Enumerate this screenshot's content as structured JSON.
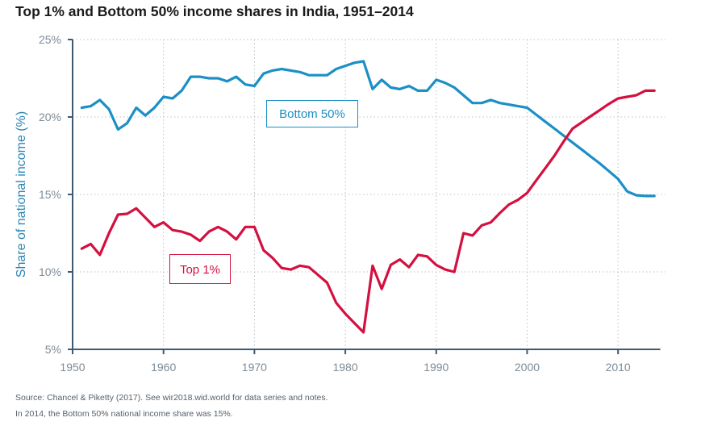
{
  "title": "Top 1% and Bottom 50% income shares in India, 1951–2014",
  "source_line_1": "Source: Chancel & Piketty (2017). See wir2018.wid.world for data series and notes.",
  "source_line_2": "In 2014, the Bottom 50% national income share was 15%.",
  "colors": {
    "bottom50": "#1b8fc6",
    "top1": "#d4103f",
    "axis": "#3e5a72",
    "grid": "#b9c2c9",
    "ylabel": "#2b86b3",
    "tick_label": "#7d8b97"
  },
  "chart_data": {
    "type": "line",
    "title": "Top 1% and Bottom 50% income shares in India, 1951–2014",
    "xlabel": "",
    "ylabel": "Share of national income (%)",
    "xlim": [
      1950,
      2015
    ],
    "ylim": [
      5,
      25
    ],
    "x_ticks": [
      1950,
      1960,
      1970,
      1980,
      1990,
      2000,
      2010
    ],
    "x_tick_labels": [
      "1950",
      "1960",
      "1970",
      "1980",
      "1990",
      "2000",
      "2010"
    ],
    "y_ticks": [
      5,
      10,
      15,
      20,
      25
    ],
    "y_tick_labels": [
      "5%",
      "10%",
      "15%",
      "20%",
      "25%"
    ],
    "grid": true,
    "legend": "inline-labels",
    "x": [
      1951,
      1952,
      1953,
      1954,
      1955,
      1956,
      1957,
      1958,
      1959,
      1960,
      1961,
      1962,
      1963,
      1964,
      1965,
      1966,
      1967,
      1968,
      1969,
      1970,
      1971,
      1972,
      1973,
      1974,
      1975,
      1976,
      1977,
      1978,
      1979,
      1980,
      1981,
      1982,
      1983,
      1984,
      1985,
      1986,
      1987,
      1988,
      1989,
      1990,
      1991,
      1992,
      1993,
      1994,
      1995,
      1996,
      1997,
      1998,
      1999,
      2000,
      2001,
      2002,
      2003,
      2004,
      2005,
      2006,
      2007,
      2008,
      2009,
      2010,
      2011,
      2012,
      2013,
      2014
    ],
    "series": [
      {
        "name": "Bottom 50%",
        "label": "Bottom 50%",
        "color_key": "bottom50",
        "values": [
          20.6,
          20.7,
          21.1,
          20.5,
          19.2,
          19.6,
          20.6,
          20.1,
          20.6,
          21.3,
          21.2,
          21.7,
          22.6,
          22.6,
          22.5,
          22.5,
          22.3,
          22.6,
          22.1,
          22.0,
          22.8,
          23.0,
          23.1,
          23.0,
          22.9,
          22.7,
          22.7,
          22.7,
          23.1,
          23.3,
          23.5,
          23.6,
          21.8,
          22.4,
          21.9,
          21.8,
          22.0,
          21.7,
          21.7,
          22.4,
          22.2,
          21.9,
          21.4,
          20.9,
          20.9,
          21.1,
          20.9,
          20.8,
          20.7,
          20.6,
          20.15,
          19.7,
          19.25,
          18.8,
          18.35,
          17.9,
          17.45,
          17.0,
          16.5,
          16.0,
          15.2,
          14.95,
          14.9,
          14.9
        ]
      },
      {
        "name": "Top 1%",
        "label": "Top 1%",
        "color_key": "top1",
        "values": [
          11.5,
          11.8,
          11.1,
          12.5,
          13.7,
          13.75,
          14.1,
          13.5,
          12.9,
          13.2,
          12.7,
          12.6,
          12.4,
          12.0,
          12.6,
          12.9,
          12.6,
          12.1,
          12.9,
          12.9,
          11.4,
          10.9,
          10.25,
          10.15,
          10.4,
          10.3,
          9.8,
          9.3,
          8.0,
          7.3,
          6.7,
          6.1,
          10.4,
          8.9,
          10.45,
          10.8,
          10.3,
          11.1,
          11.0,
          10.45,
          10.15,
          10.0,
          12.5,
          12.35,
          13.0,
          13.2,
          13.8,
          14.35,
          14.65,
          15.1,
          15.9,
          16.7,
          17.5,
          18.4,
          19.25,
          19.65,
          20.05,
          20.45,
          20.85,
          21.2,
          21.3,
          21.4,
          21.7,
          21.7
        ]
      }
    ]
  }
}
